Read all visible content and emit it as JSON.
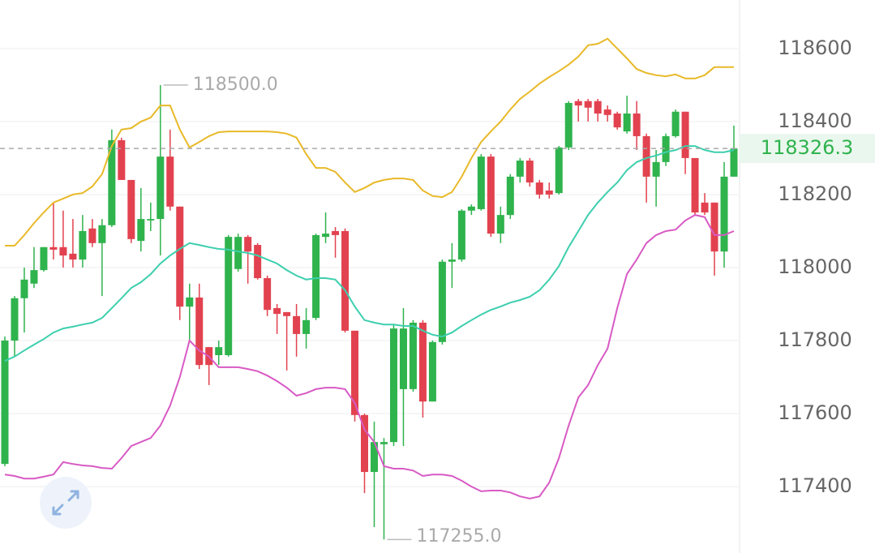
{
  "chart_data": {
    "type": "candlestick",
    "ylim": [
      117218,
      118733
    ],
    "yticks": [
      117400,
      117600,
      117800,
      118000,
      118200,
      118400,
      118600
    ],
    "grid": true,
    "y_axis_side": "right",
    "up_color": "#2fb34d",
    "down_color": "#e2424f",
    "open": [
      117462,
      117800,
      117916,
      117956,
      117993,
      118056,
      118056,
      118038,
      118022,
      118107,
      118067,
      118116,
      118349,
      118240,
      118073,
      118129,
      118133,
      118304,
      118167,
      117893,
      117918,
      117782,
      117760,
      117760,
      117996,
      118084,
      118062,
      117971,
      117889,
      117878,
      117867,
      117818,
      117862,
      118084,
      118100,
      118100,
      117827,
      117596,
      117440,
      117516,
      117522,
      117667,
      117667,
      117849,
      117633,
      117796,
      118016,
      118022,
      118156,
      118160,
      118304,
      118093,
      118144,
      118249,
      118293,
      118233,
      118211,
      118204,
      118329,
      118456,
      118456,
      118456,
      118433,
      118422,
      118373,
      118422,
      118360,
      118249,
      118289,
      118360,
      118427,
      118300,
      118178,
      118178,
      118044,
      118249
    ],
    "high": [
      117811,
      117922,
      118000,
      118056,
      118056,
      118178,
      118156,
      118133,
      118144,
      118133,
      118133,
      118378,
      118356,
      118240,
      118218,
      118178,
      118500,
      118378,
      118167,
      117956,
      117956,
      117782,
      117800,
      118089,
      118093,
      118089,
      118067,
      117978,
      117900,
      117878,
      117900,
      117889,
      118093,
      118151,
      118111,
      118107,
      117827,
      117600,
      117578,
      117533,
      117844,
      117889,
      117856,
      117856,
      117800,
      118022,
      118067,
      118160,
      118173,
      118311,
      118311,
      118167,
      118256,
      118300,
      118300,
      118240,
      118233,
      118333,
      118456,
      118462,
      118462,
      118462,
      118444,
      118427,
      118471,
      118456,
      118367,
      118322,
      118367,
      118433,
      118427,
      118300,
      118204,
      118178,
      118289,
      118389
    ],
    "low": [
      117456,
      117756,
      117822,
      117944,
      117989,
      118022,
      118000,
      118000,
      118000,
      118056,
      117922,
      118111,
      118240,
      118067,
      118044,
      118100,
      118033,
      118156,
      117856,
      117800,
      117722,
      117678,
      117733,
      117756,
      117989,
      117956,
      117967,
      117867,
      117818,
      117718,
      117756,
      117778,
      117856,
      118067,
      118027,
      117822,
      117578,
      117382,
      117289,
      117255,
      117511,
      117511,
      117660,
      117589,
      117633,
      117789,
      117944,
      118016,
      118144,
      118156,
      118084,
      118067,
      118133,
      118233,
      118222,
      118189,
      118189,
      118200,
      118322,
      118400,
      118400,
      118400,
      118400,
      118378,
      118367,
      118322,
      118178,
      118167,
      118278,
      118356,
      118256,
      118144,
      118144,
      117978,
      118000,
      118249
    ],
    "close": [
      117800,
      117916,
      117967,
      117993,
      118056,
      118049,
      118033,
      118022,
      118100,
      118067,
      118116,
      118349,
      118240,
      118078,
      118133,
      118133,
      118304,
      118167,
      117893,
      117918,
      117733,
      117733,
      117782,
      118084,
      118084,
      118044,
      117971,
      117884,
      117873,
      117867,
      117818,
      117856,
      118089,
      118093,
      118089,
      117827,
      117596,
      117440,
      117522,
      117522,
      117833,
      117833,
      117849,
      117633,
      117796,
      118016,
      118022,
      118156,
      118167,
      118304,
      118093,
      118144,
      118249,
      118293,
      118233,
      118200,
      118200,
      118329,
      118451,
      118444,
      118438,
      118422,
      118418,
      118384,
      118422,
      118360,
      118249,
      118289,
      118360,
      118427,
      118300,
      118151,
      118151,
      118044,
      118249,
      118326.3
    ],
    "overlays": [
      {
        "color": "#e8b928",
        "values": [
          118060,
          118060,
          118089,
          118122,
          118151,
          118178,
          118189,
          118200,
          118204,
          118222,
          118256,
          118333,
          118378,
          118382,
          118400,
          118411,
          118444,
          118444,
          118378,
          118329,
          118344,
          118360,
          118371,
          118373,
          118373,
          118373,
          118373,
          118373,
          118371,
          118367,
          118356,
          118311,
          118273,
          118273,
          118262,
          118233,
          118207,
          118218,
          118233,
          118240,
          118244,
          118244,
          118240,
          118211,
          118196,
          118193,
          118207,
          118249,
          118300,
          118344,
          118373,
          118400,
          118433,
          118462,
          118482,
          118504,
          118522,
          118538,
          118556,
          118578,
          118609,
          118613,
          118627,
          118600,
          118573,
          118544,
          118533,
          118527,
          118524,
          118529,
          118518,
          118518,
          118527,
          118549,
          118549,
          118549
        ]
      },
      {
        "color": "#3dcfae",
        "values": [
          117744,
          117756,
          117773,
          117789,
          117804,
          117822,
          117833,
          117838,
          117844,
          117849,
          117862,
          117889,
          117916,
          117944,
          117960,
          117982,
          118011,
          118033,
          118051,
          118067,
          118062,
          118056,
          118051,
          118049,
          118044,
          118040,
          118033,
          118022,
          118011,
          117993,
          117978,
          117967,
          117971,
          117971,
          117967,
          117938,
          117893,
          117856,
          117849,
          117844,
          117844,
          117840,
          117840,
          117827,
          117816,
          117811,
          117822,
          117840,
          117856,
          117871,
          117884,
          117893,
          117904,
          117911,
          117920,
          117938,
          117967,
          118004,
          118056,
          118100,
          118144,
          118178,
          118207,
          118233,
          118267,
          118289,
          118300,
          118307,
          118316,
          118322,
          118333,
          118333,
          118322,
          118316,
          118316,
          118322
        ]
      },
      {
        "color": "#d85ac4",
        "values": [
          117433,
          117429,
          117422,
          117422,
          117427,
          117433,
          117467,
          117462,
          117458,
          117456,
          117451,
          117449,
          117478,
          117511,
          117522,
          117533,
          117567,
          117622,
          117700,
          117800,
          117773,
          117756,
          117727,
          117727,
          117727,
          117722,
          117716,
          117704,
          117689,
          117671,
          117649,
          117656,
          117667,
          117671,
          117671,
          117667,
          117629,
          117556,
          117522,
          117456,
          117449,
          117449,
          117444,
          117429,
          117433,
          117433,
          117429,
          117416,
          117400,
          117387,
          117389,
          117389,
          117384,
          117373,
          117367,
          117373,
          117411,
          117478,
          117567,
          117644,
          117678,
          117733,
          117778,
          117889,
          117982,
          118022,
          118067,
          118089,
          118100,
          118104,
          118129,
          118144,
          118138,
          118089,
          118089,
          118100
        ]
      }
    ],
    "last_price": 118326.3,
    "last_price_color": "#2fb34d",
    "annotations": [
      {
        "value": 118500,
        "label": "118500.0"
      },
      {
        "value": 117255,
        "label": "117255.0"
      }
    ]
  }
}
